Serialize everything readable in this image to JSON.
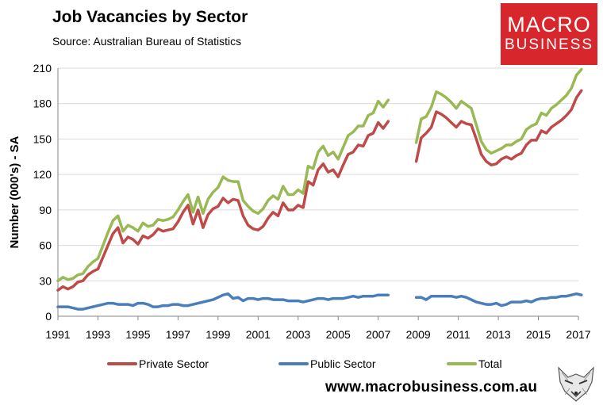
{
  "title": "Job Vacancies by Sector",
  "source": "Source: Australian Bureau of Statistics",
  "logo": {
    "line1": "MACRO",
    "line2": "BUSINESS"
  },
  "website": "www.macrobusiness.com.au",
  "colors": {
    "private": "#be4b48",
    "public": "#4a7ebb",
    "total": "#98b954",
    "grid": "#d9d9d9",
    "brand": "#d7262c"
  },
  "chart_data": {
    "type": "line",
    "title": "Job Vacancies by Sector",
    "ylabel": "Number (000's) - SA",
    "xlabel": "",
    "ylim": [
      0,
      210
    ],
    "xlim": [
      1991,
      2017
    ],
    "yticks": [
      "0",
      "30",
      "60",
      "90",
      "120",
      "150",
      "180",
      "210"
    ],
    "xticks": [
      "1991",
      "1993",
      "1995",
      "1997",
      "1999",
      "2001",
      "2003",
      "2005",
      "2007",
      "2009",
      "2011",
      "2013",
      "2015",
      "2017"
    ],
    "grid": true,
    "legend_position": "bottom",
    "gap": [
      2007.5,
      2008.9
    ],
    "x": [
      1991.0,
      1991.25,
      1991.5,
      1991.75,
      1992.0,
      1992.25,
      1992.5,
      1992.75,
      1993.0,
      1993.25,
      1993.5,
      1993.75,
      1994.0,
      1994.25,
      1994.5,
      1994.75,
      1995.0,
      1995.25,
      1995.5,
      1995.75,
      1996.0,
      1996.25,
      1996.5,
      1996.75,
      1997.0,
      1997.25,
      1997.5,
      1997.75,
      1998.0,
      1998.25,
      1998.5,
      1998.75,
      1999.0,
      1999.25,
      1999.5,
      1999.75,
      2000.0,
      2000.25,
      2000.5,
      2000.75,
      2001.0,
      2001.25,
      2001.5,
      2001.75,
      2002.0,
      2002.25,
      2002.5,
      2002.75,
      2003.0,
      2003.25,
      2003.5,
      2003.75,
      2004.0,
      2004.25,
      2004.5,
      2004.75,
      2005.0,
      2005.25,
      2005.5,
      2005.75,
      2006.0,
      2006.25,
      2006.5,
      2006.75,
      2007.0,
      2007.25,
      2007.5,
      2008.9,
      2009.15,
      2009.4,
      2009.65,
      2009.9,
      2010.15,
      2010.4,
      2010.65,
      2010.9,
      2011.15,
      2011.4,
      2011.65,
      2011.9,
      2012.15,
      2012.4,
      2012.65,
      2012.9,
      2013.15,
      2013.4,
      2013.65,
      2013.9,
      2014.15,
      2014.4,
      2014.65,
      2014.9,
      2015.15,
      2015.4,
      2015.65,
      2015.9,
      2016.15,
      2016.4,
      2016.65,
      2016.9,
      2017.15
    ],
    "series": [
      {
        "name": "Private Sector",
        "values": [
          22,
          25,
          23,
          25,
          29,
          30,
          35,
          38,
          40,
          50,
          60,
          70,
          75,
          62,
          67,
          65,
          61,
          68,
          66,
          69,
          74,
          72,
          73,
          74,
          80,
          88,
          94,
          78,
          90,
          75,
          86,
          91,
          93,
          100,
          96,
          99,
          98,
          85,
          77,
          74,
          73,
          76,
          83,
          88,
          85,
          96,
          90,
          90,
          94,
          92,
          114,
          111,
          124,
          129,
          122,
          124,
          118,
          128,
          137,
          139,
          145,
          144,
          153,
          155,
          164,
          159,
          165,
          131,
          151,
          155,
          160,
          173,
          171,
          168,
          164,
          160,
          165,
          163,
          162,
          150,
          137,
          131,
          128,
          129,
          133,
          135,
          133,
          136,
          138,
          145,
          149,
          149,
          157,
          155,
          160,
          163,
          166,
          170,
          175,
          185,
          191
        ]
      },
      {
        "name": "Public Sector",
        "values": [
          8,
          8,
          8,
          7,
          6,
          6,
          7,
          8,
          9,
          10,
          11,
          11,
          10,
          10,
          10,
          9,
          11,
          11,
          10,
          8,
          8,
          9,
          9,
          10,
          10,
          9,
          9,
          10,
          11,
          12,
          13,
          14,
          16,
          18,
          19,
          15,
          16,
          13,
          15,
          15,
          14,
          15,
          15,
          14,
          14,
          14,
          13,
          13,
          13,
          12,
          13,
          14,
          15,
          15,
          14,
          15,
          15,
          15,
          16,
          17,
          16,
          17,
          17,
          17,
          18,
          18,
          18,
          16,
          16,
          14,
          17,
          17,
          17,
          17,
          17,
          16,
          17,
          16,
          14,
          12,
          11,
          10,
          10,
          11,
          9,
          10,
          12,
          12,
          12,
          13,
          12,
          14,
          15,
          15,
          16,
          16,
          17,
          17,
          18,
          19,
          18
        ]
      },
      {
        "name": "Total",
        "values": [
          30,
          33,
          31,
          32,
          35,
          36,
          42,
          46,
          49,
          60,
          71,
          81,
          85,
          72,
          77,
          75,
          72,
          79,
          76,
          77,
          82,
          81,
          82,
          84,
          90,
          97,
          103,
          88,
          101,
          87,
          99,
          105,
          109,
          118,
          115,
          114,
          114,
          98,
          93,
          89,
          87,
          91,
          98,
          102,
          99,
          110,
          103,
          103,
          107,
          104,
          127,
          125,
          139,
          144,
          136,
          139,
          133,
          143,
          153,
          156,
          161,
          161,
          170,
          172,
          182,
          177,
          183,
          147,
          167,
          169,
          177,
          190,
          188,
          185,
          181,
          176,
          182,
          179,
          176,
          162,
          148,
          141,
          138,
          140,
          142,
          145,
          145,
          148,
          150,
          158,
          161,
          163,
          172,
          170,
          176,
          179,
          183,
          187,
          193,
          204,
          209
        ]
      }
    ]
  }
}
